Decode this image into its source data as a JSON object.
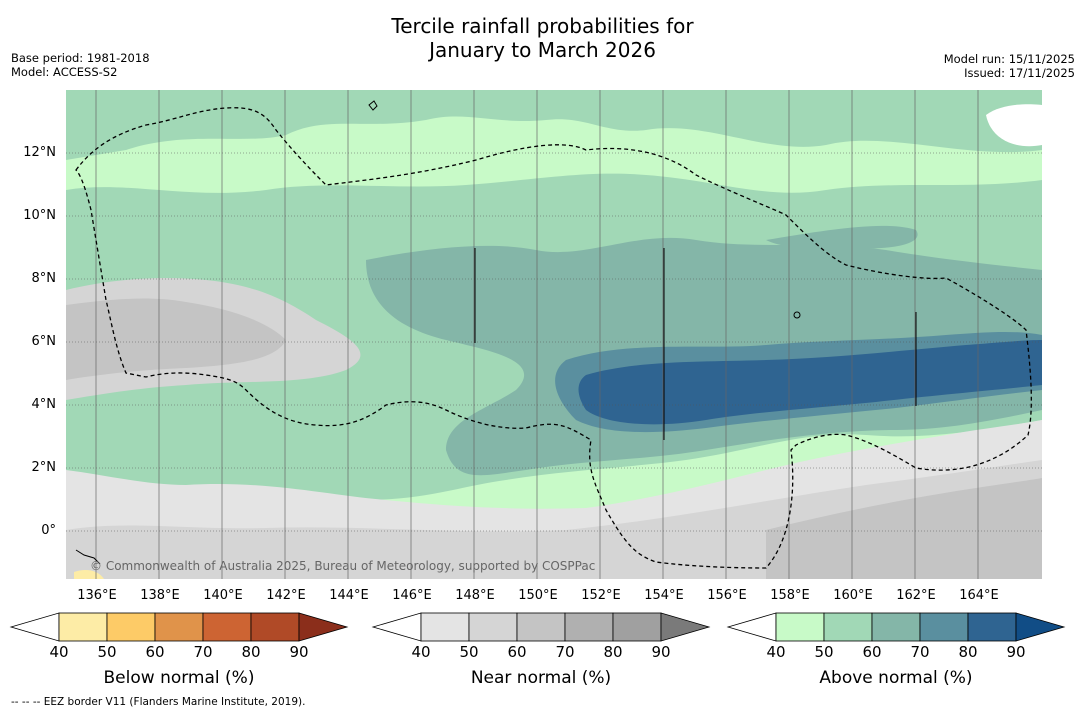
{
  "title_line1": "Tercile rainfall probabilities for",
  "title_line2": "January to March 2026",
  "meta_left": {
    "base_period": "Base period: 1981-2018",
    "model": "Model: ACCESS-S2"
  },
  "meta_right": {
    "model_run": "Model run: 15/11/2025",
    "issued": "Issued: 17/11/2025"
  },
  "lat_ticks": [
    "12°N",
    "10°N",
    "8°N",
    "6°N",
    "4°N",
    "2°N",
    "0°"
  ],
  "lon_ticks": [
    "136°E",
    "138°E",
    "140°E",
    "142°E",
    "144°E",
    "146°E",
    "148°E",
    "150°E",
    "152°E",
    "154°E",
    "156°E",
    "158°E",
    "160°E",
    "162°E",
    "164°E"
  ],
  "copyright": "© Commonwealth of Australia 2025, Bureau of Meteorology, supported by COSPPac",
  "colorbars": [
    {
      "label": "Below normal (%)",
      "ticks": [
        "40",
        "50",
        "60",
        "70",
        "80",
        "90"
      ],
      "colors": [
        "#ffffff",
        "#fdeca6",
        "#fdcb67",
        "#e0934a",
        "#cd6433",
        "#b04a27",
        "#8b2e1b"
      ]
    },
    {
      "label": "Near normal (%)",
      "ticks": [
        "40",
        "50",
        "60",
        "70",
        "80",
        "90"
      ],
      "colors": [
        "#ffffff",
        "#e4e4e4",
        "#d5d5d5",
        "#c4c4c4",
        "#b0b0b0",
        "#a0a0a0",
        "#7a7a7a"
      ]
    },
    {
      "label": "Above normal (%)",
      "ticks": [
        "40",
        "50",
        "60",
        "70",
        "80",
        "90"
      ],
      "colors": [
        "#ffffff",
        "#c8fac8",
        "#a1d8b6",
        "#84b6a8",
        "#5a8f9f",
        "#2f6491",
        "#114d86"
      ]
    }
  ],
  "footnote": "--  --  -- EEZ border V11 (Flanders Marine Institute, 2019)."
}
